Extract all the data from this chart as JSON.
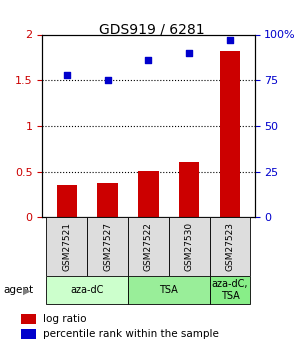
{
  "title": "GDS919 / 6281",
  "categories": [
    "GSM27521",
    "GSM27527",
    "GSM27522",
    "GSM27530",
    "GSM27523"
  ],
  "log_ratio": [
    0.35,
    0.38,
    0.51,
    0.6,
    1.82
  ],
  "percentile_rank": [
    78,
    75,
    86,
    90,
    97
  ],
  "bar_color": "#cc0000",
  "dot_color": "#0000cc",
  "ylim_left": [
    0,
    2
  ],
  "ylim_right": [
    0,
    100
  ],
  "yticks_left": [
    0,
    0.5,
    1.0,
    1.5,
    2.0
  ],
  "ytick_labels_left": [
    "0",
    "0.5",
    "1",
    "1.5",
    "2"
  ],
  "yticks_right": [
    0,
    25,
    50,
    75,
    100
  ],
  "ytick_labels_right": [
    "0",
    "25",
    "50",
    "75",
    "100%"
  ],
  "hlines": [
    0.5,
    1.0,
    1.5
  ],
  "agent_labels": [
    "aza-dC",
    "TSA",
    "aza-dC,\nTSA"
  ],
  "agent_groups": [
    [
      0,
      1
    ],
    [
      2,
      3
    ],
    [
      4
    ]
  ],
  "agent_colors": [
    "#ccffcc",
    "#99ee99",
    "#88ee88"
  ],
  "bar_width": 0.5,
  "background_color": "#ffffff",
  "legend_log_ratio": "log ratio",
  "legend_percentile": "percentile rank within the sample"
}
